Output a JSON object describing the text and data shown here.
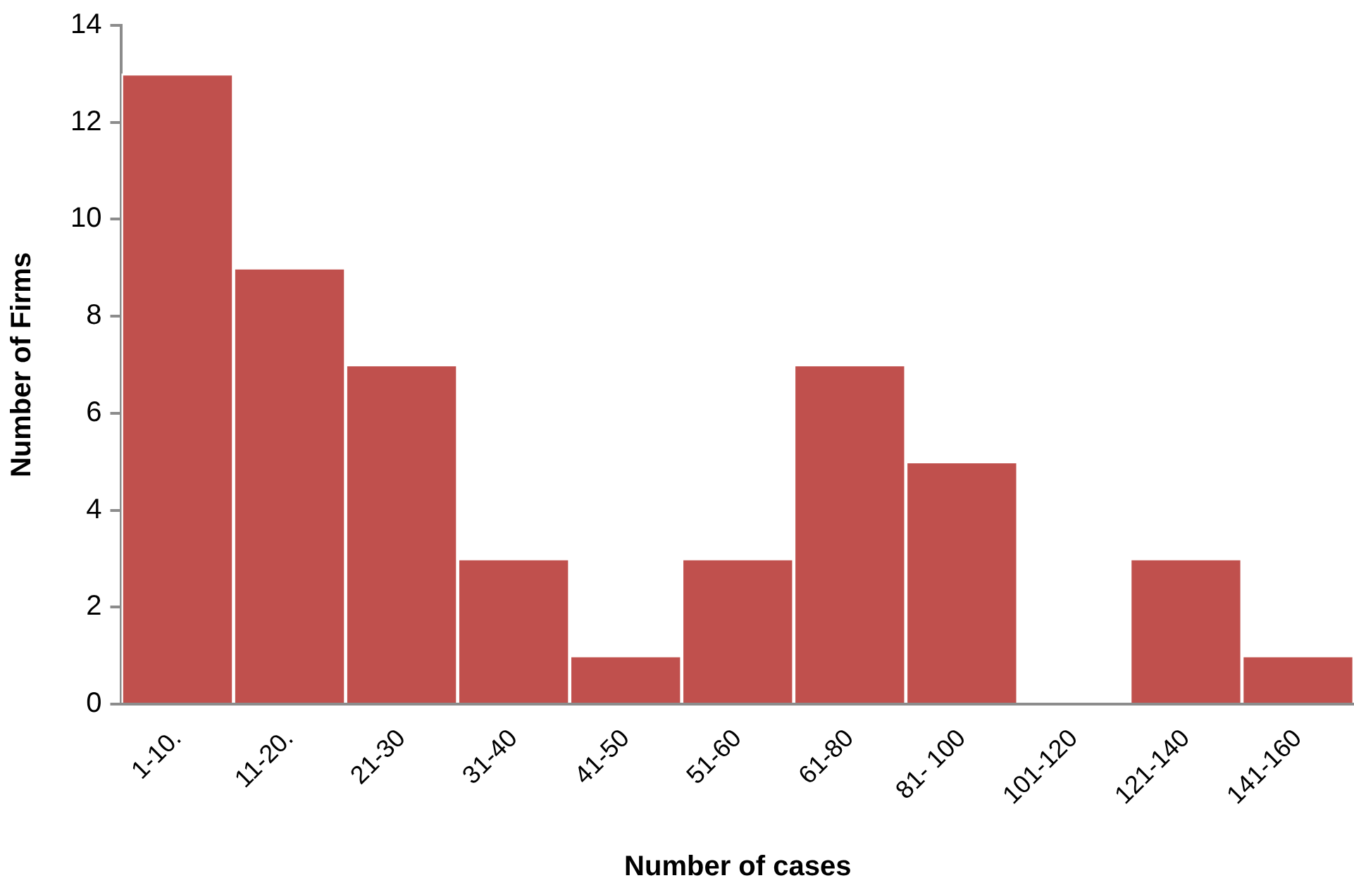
{
  "chart_data": {
    "type": "bar",
    "xlabel": "Number of cases",
    "ylabel": "Number of Firms",
    "categories": [
      "1-10.",
      "11-20.",
      "21-30",
      "31-40",
      "41-50",
      "51-60",
      "61-80",
      "81- 100",
      "101-120",
      "121-140",
      "141-160"
    ],
    "values": [
      13,
      9,
      7,
      3,
      1,
      3,
      7,
      5,
      0,
      3,
      1
    ],
    "color": "#c0504d",
    "ylim": [
      0,
      14
    ],
    "yticks": [
      0,
      2,
      4,
      6,
      8,
      10,
      12,
      14
    ]
  }
}
